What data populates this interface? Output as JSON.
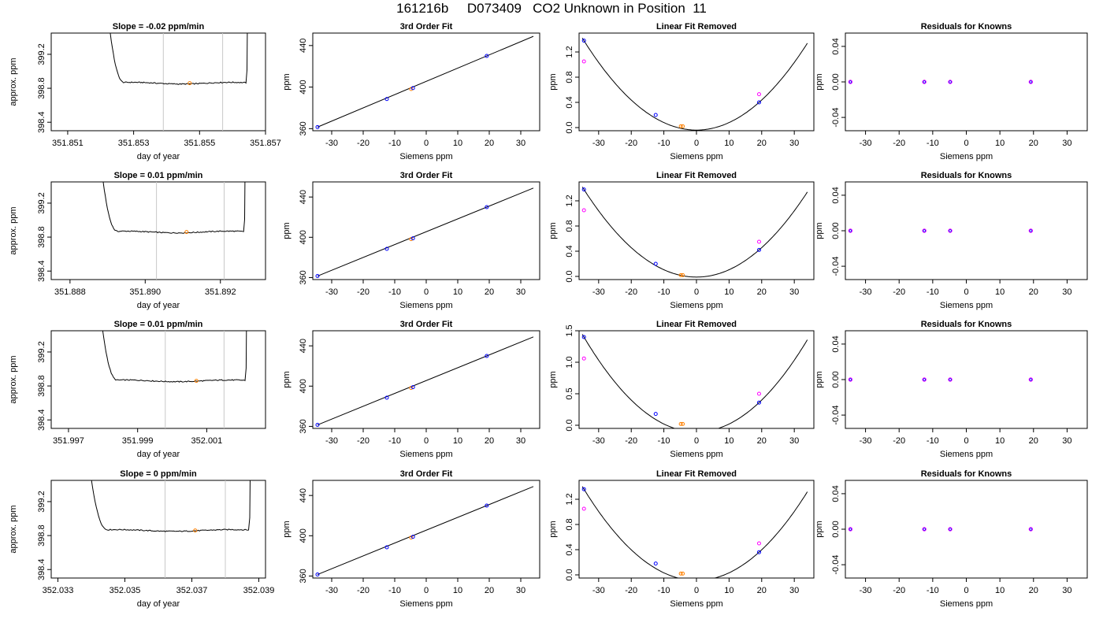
{
  "title": "161216b     D073409   CO2 Unknown in Position  11",
  "colors": {
    "axis": "#000000",
    "line": "#000000",
    "marker": "#e8a0a8",
    "vline": "#c8c8c8",
    "known": "#0000ff",
    "unknown": "#ff00ff",
    "current": "#ff8000"
  },
  "chart_data": [
    {
      "type": "line",
      "row": 1,
      "panel": "timeseries",
      "title": "Slope =  -0.02  ppm/min",
      "xlabel": "day of year",
      "ylabel": "approx. ppm",
      "xlim": [
        351.8505,
        351.857
      ],
      "ylim": [
        398.3,
        399.45
      ],
      "xticks": [
        351.851,
        351.853,
        351.855,
        351.857
      ],
      "xtick_labels": [
        "351.851",
        "351.853",
        "351.855",
        "351.857"
      ],
      "yticks": [
        398.4,
        398.8,
        399.2
      ],
      "ytick_labels": [
        "398.4",
        "398.8",
        "399.2"
      ],
      "baseline": 398.86,
      "start": 351.8522,
      "end": 351.8565,
      "vlines": [
        351.8539,
        351.8557
      ],
      "marker": [
        351.8547,
        398.86
      ]
    },
    {
      "type": "line",
      "row": 1,
      "panel": "fit",
      "title": "3rd Order Fit",
      "xlabel": "Siemens ppm",
      "ylabel": "ppm",
      "xlim": [
        -36,
        36
      ],
      "ylim": [
        358,
        452
      ],
      "xticks": [
        -30,
        -20,
        -10,
        0,
        10,
        20,
        30
      ],
      "xtick_labels": [
        "-30",
        "-20",
        "-10",
        "0",
        "10",
        "20",
        "30"
      ],
      "yticks": [
        360,
        400,
        440
      ],
      "ytick_labels": [
        "360",
        "400",
        "440"
      ],
      "points": [
        [
          -34.5,
          361.5
        ],
        [
          -12.5,
          388.5
        ],
        [
          -4.8,
          398.2
        ],
        [
          -4.2,
          399
        ],
        [
          19.2,
          430
        ]
      ]
    },
    {
      "type": "line",
      "row": 1,
      "panel": "residual",
      "title": "Linear Fit Removed",
      "xlabel": "Siemens ppm",
      "ylabel": "ppm",
      "xlim": [
        -36,
        36
      ],
      "ylim": [
        -0.05,
        1.5
      ],
      "xticks": [
        -30,
        -20,
        -10,
        0,
        10,
        20,
        30
      ],
      "xtick_labels": [
        "-30",
        "-20",
        "-10",
        "0",
        "10",
        "20",
        "30"
      ],
      "yticks": [
        0,
        0.4,
        0.8,
        1.2
      ],
      "ytick_labels": [
        "0.0",
        "0.4",
        "0.8",
        "1.2"
      ],
      "known": [
        [
          -34.5,
          1.38
        ],
        [
          -12.5,
          0.2
        ],
        [
          -4.8,
          0.02
        ],
        [
          -4.2,
          0.02
        ],
        [
          19.2,
          0.4
        ]
      ],
      "unknown": [
        [
          -34.5,
          1.05
        ],
        [
          19.2,
          0.53
        ]
      ]
    },
    {
      "type": "scatter",
      "row": 1,
      "panel": "knowns",
      "title": "Residuals for Knowns",
      "xlabel": "Siemens ppm",
      "ylabel": "ppm",
      "xlim": [
        -36,
        36
      ],
      "ylim": [
        -0.055,
        0.055
      ],
      "xticks": [
        -30,
        -20,
        -10,
        0,
        10,
        20,
        30
      ],
      "xtick_labels": [
        "-30",
        "-20",
        "-10",
        "0",
        "10",
        "20",
        "30"
      ],
      "yticks": [
        -0.04,
        0,
        0.04
      ],
      "ytick_labels": [
        "-0.04",
        "0.00",
        "0.04"
      ],
      "points": [
        [
          -34.5,
          0
        ],
        [
          -12.5,
          0
        ],
        [
          -4.8,
          0
        ],
        [
          19.2,
          0
        ]
      ]
    },
    {
      "type": "line",
      "row": 2,
      "panel": "timeseries",
      "title": "Slope =  0.01  ppm/min",
      "xlabel": "day of year",
      "ylabel": "approx. ppm",
      "xlim": [
        351.8875,
        351.8932
      ],
      "ylim": [
        398.3,
        399.45
      ],
      "xticks": [
        351.888,
        351.89,
        351.892
      ],
      "xtick_labels": [
        "351.888",
        "351.890",
        "351.892"
      ],
      "yticks": [
        398.4,
        398.8,
        399.2
      ],
      "ytick_labels": [
        "398.4",
        "398.8",
        "399.2"
      ],
      "baseline": 398.86,
      "start": 351.8888,
      "end": 351.8927,
      "vlines": [
        351.8903,
        351.8921
      ],
      "marker": [
        351.8911,
        398.86
      ]
    },
    {
      "type": "line",
      "row": 2,
      "panel": "fit",
      "title": "3rd Order Fit",
      "xlabel": "Siemens ppm",
      "ylabel": "ppm",
      "xlim": [
        -36,
        36
      ],
      "ylim": [
        358,
        455
      ],
      "xticks": [
        -30,
        -20,
        -10,
        0,
        10,
        20,
        30
      ],
      "xtick_labels": [
        "-30",
        "-20",
        "-10",
        "0",
        "10",
        "20",
        "30"
      ],
      "yticks": [
        360,
        400,
        440
      ],
      "ytick_labels": [
        "360",
        "400",
        "440"
      ],
      "points": [
        [
          -34.5,
          361.5
        ],
        [
          -12.5,
          388.5
        ],
        [
          -4.8,
          398.2
        ],
        [
          -4.2,
          399
        ],
        [
          19.2,
          430
        ]
      ]
    },
    {
      "type": "line",
      "row": 2,
      "panel": "residual",
      "title": "Linear Fit Removed",
      "xlabel": "Siemens ppm",
      "ylabel": "ppm",
      "xlim": [
        -36,
        36
      ],
      "ylim": [
        -0.05,
        1.5
      ],
      "xticks": [
        -30,
        -20,
        -10,
        0,
        10,
        20,
        30
      ],
      "xtick_labels": [
        "-30",
        "-20",
        "-10",
        "0",
        "10",
        "20",
        "30"
      ],
      "yticks": [
        0,
        0.4,
        0.8,
        1.2
      ],
      "ytick_labels": [
        "0.0",
        "0.4",
        "0.8",
        "1.2"
      ],
      "known": [
        [
          -34.5,
          1.38
        ],
        [
          -12.5,
          0.2
        ],
        [
          -4.8,
          0.02
        ],
        [
          -4.2,
          0.02
        ],
        [
          19.2,
          0.42
        ]
      ],
      "unknown": [
        [
          -34.5,
          1.05
        ],
        [
          19.2,
          0.55
        ]
      ]
    },
    {
      "type": "scatter",
      "row": 2,
      "panel": "knowns",
      "title": "Residuals for Knowns",
      "xlabel": "Siemens ppm",
      "ylabel": "ppm",
      "xlim": [
        -36,
        36
      ],
      "ylim": [
        -0.055,
        0.055
      ],
      "xticks": [
        -30,
        -20,
        -10,
        0,
        10,
        20,
        30
      ],
      "xtick_labels": [
        "-30",
        "-20",
        "-10",
        "0",
        "10",
        "20",
        "30"
      ],
      "yticks": [
        -0.04,
        0,
        0.04
      ],
      "ytick_labels": [
        "-0.04",
        "0.00",
        "0.04"
      ],
      "points": [
        [
          -34.5,
          0
        ],
        [
          -12.5,
          0
        ],
        [
          -4.8,
          0
        ],
        [
          19.2,
          0
        ]
      ]
    },
    {
      "type": "line",
      "row": 3,
      "panel": "timeseries",
      "title": "Slope =  0.01  ppm/min",
      "xlabel": "day of year",
      "ylabel": "approx. ppm",
      "xlim": [
        351.9965,
        352.0027
      ],
      "ylim": [
        398.3,
        399.45
      ],
      "xticks": [
        351.997,
        351.999,
        352.001
      ],
      "xtick_labels": [
        "351.997",
        "351.999",
        "352.001"
      ],
      "yticks": [
        398.4,
        398.8,
        399.2
      ],
      "ytick_labels": [
        "398.4",
        "398.8",
        "399.2"
      ],
      "baseline": 398.86,
      "start": 351.9979,
      "end": 352.0022,
      "vlines": [
        351.9998,
        352.0015
      ],
      "marker": [
        352.0007,
        398.86
      ]
    },
    {
      "type": "line",
      "row": 3,
      "panel": "fit",
      "title": "3rd Order Fit",
      "xlabel": "Siemens ppm",
      "ylabel": "ppm",
      "xlim": [
        -36,
        36
      ],
      "ylim": [
        358,
        455
      ],
      "xticks": [
        -30,
        -20,
        -10,
        0,
        10,
        20,
        30
      ],
      "xtick_labels": [
        "-30",
        "-20",
        "-10",
        "0",
        "10",
        "20",
        "30"
      ],
      "yticks": [
        360,
        400,
        440
      ],
      "ytick_labels": [
        "360",
        "400",
        "440"
      ],
      "points": [
        [
          -34.5,
          361.5
        ],
        [
          -12.5,
          388.5
        ],
        [
          -4.8,
          398.2
        ],
        [
          -4.2,
          399
        ],
        [
          19.2,
          430
        ]
      ]
    },
    {
      "type": "line",
      "row": 3,
      "panel": "residual",
      "title": "Linear Fit Removed",
      "xlabel": "Siemens ppm",
      "ylabel": "ppm",
      "xlim": [
        -36,
        36
      ],
      "ylim": [
        -0.05,
        1.5
      ],
      "xticks": [
        -30,
        -20,
        -10,
        0,
        10,
        20,
        30
      ],
      "xtick_labels": [
        "-30",
        "-20",
        "-10",
        "0",
        "10",
        "20",
        "30"
      ],
      "yticks": [
        0,
        0.5,
        1.0,
        1.5
      ],
      "ytick_labels": [
        "0.0",
        "0.5",
        "1.0",
        "1.5"
      ],
      "known": [
        [
          -34.5,
          1.4
        ],
        [
          -12.5,
          0.18
        ],
        [
          -4.8,
          0.02
        ],
        [
          -4.2,
          0.02
        ],
        [
          19.2,
          0.36
        ]
      ],
      "unknown": [
        [
          -34.5,
          1.06
        ],
        [
          19.2,
          0.5
        ]
      ]
    },
    {
      "type": "scatter",
      "row": 3,
      "panel": "knowns",
      "title": "Residuals for Knowns",
      "xlabel": "Siemens ppm",
      "ylabel": "ppm",
      "xlim": [
        -36,
        36
      ],
      "ylim": [
        -0.055,
        0.055
      ],
      "xticks": [
        -30,
        -20,
        -10,
        0,
        10,
        20,
        30
      ],
      "xtick_labels": [
        "-30",
        "-20",
        "-10",
        "0",
        "10",
        "20",
        "30"
      ],
      "yticks": [
        -0.04,
        0,
        0.04
      ],
      "ytick_labels": [
        "-0.04",
        "0.00",
        "0.04"
      ],
      "points": [
        [
          -34.5,
          0
        ],
        [
          -12.5,
          0
        ],
        [
          -4.8,
          0
        ],
        [
          19.2,
          0
        ]
      ]
    },
    {
      "type": "line",
      "row": 4,
      "panel": "timeseries",
      "title": "Slope =  0  ppm/min",
      "xlabel": "day of year",
      "ylabel": "approx. ppm",
      "xlim": [
        352.0328,
        352.0392
      ],
      "ylim": [
        398.3,
        399.45
      ],
      "xticks": [
        352.033,
        352.035,
        352.037,
        352.039
      ],
      "xtick_labels": [
        "352.033",
        "352.035",
        "352.037",
        "352.039"
      ],
      "yticks": [
        398.4,
        398.8,
        399.2
      ],
      "ytick_labels": [
        "398.4",
        "398.8",
        "399.2"
      ],
      "baseline": 398.86,
      "start": 352.0339,
      "end": 352.0388,
      "vlines": [
        352.0362,
        352.038
      ],
      "marker": [
        352.0371,
        398.86
      ]
    },
    {
      "type": "line",
      "row": 4,
      "panel": "fit",
      "title": "3rd Order Fit",
      "xlabel": "Siemens ppm",
      "ylabel": "ppm",
      "xlim": [
        -36,
        36
      ],
      "ylim": [
        358,
        455
      ],
      "xticks": [
        -30,
        -20,
        -10,
        0,
        10,
        20,
        30
      ],
      "xtick_labels": [
        "-30",
        "-20",
        "-10",
        "0",
        "10",
        "20",
        "30"
      ],
      "yticks": [
        360,
        400,
        440
      ],
      "ytick_labels": [
        "360",
        "400",
        "440"
      ],
      "points": [
        [
          -34.5,
          361.5
        ],
        [
          -12.5,
          388.5
        ],
        [
          -4.8,
          398.2
        ],
        [
          -4.2,
          399
        ],
        [
          19.2,
          430
        ]
      ]
    },
    {
      "type": "line",
      "row": 4,
      "panel": "residual",
      "title": "Linear Fit Removed",
      "xlabel": "Siemens ppm",
      "ylabel": "ppm",
      "xlim": [
        -36,
        36
      ],
      "ylim": [
        -0.05,
        1.5
      ],
      "xticks": [
        -30,
        -20,
        -10,
        0,
        10,
        20,
        30
      ],
      "xtick_labels": [
        "-30",
        "-20",
        "-10",
        "0",
        "10",
        "20",
        "30"
      ],
      "yticks": [
        0,
        0.4,
        0.8,
        1.2
      ],
      "ytick_labels": [
        "0.0",
        "0.4",
        "0.8",
        "1.2"
      ],
      "known": [
        [
          -34.5,
          1.36
        ],
        [
          -12.5,
          0.18
        ],
        [
          -4.8,
          0.02
        ],
        [
          -4.2,
          0.02
        ],
        [
          19.2,
          0.36
        ]
      ],
      "unknown": [
        [
          -34.5,
          1.05
        ],
        [
          19.2,
          0.5
        ]
      ]
    },
    {
      "type": "scatter",
      "row": 4,
      "panel": "knowns",
      "title": "Residuals for Knowns",
      "xlabel": "Siemens ppm",
      "ylabel": "ppm",
      "xlim": [
        -36,
        36
      ],
      "ylim": [
        -0.055,
        0.055
      ],
      "xticks": [
        -30,
        -20,
        -10,
        0,
        10,
        20,
        30
      ],
      "xtick_labels": [
        "-30",
        "-20",
        "-10",
        "0",
        "10",
        "20",
        "30"
      ],
      "yticks": [
        -0.04,
        0,
        0.04
      ],
      "ytick_labels": [
        "-0.04",
        "0.00",
        "0.04"
      ],
      "points": [
        [
          -34.5,
          0
        ],
        [
          -12.5,
          0
        ],
        [
          -4.8,
          0
        ],
        [
          19.2,
          0
        ]
      ]
    }
  ]
}
